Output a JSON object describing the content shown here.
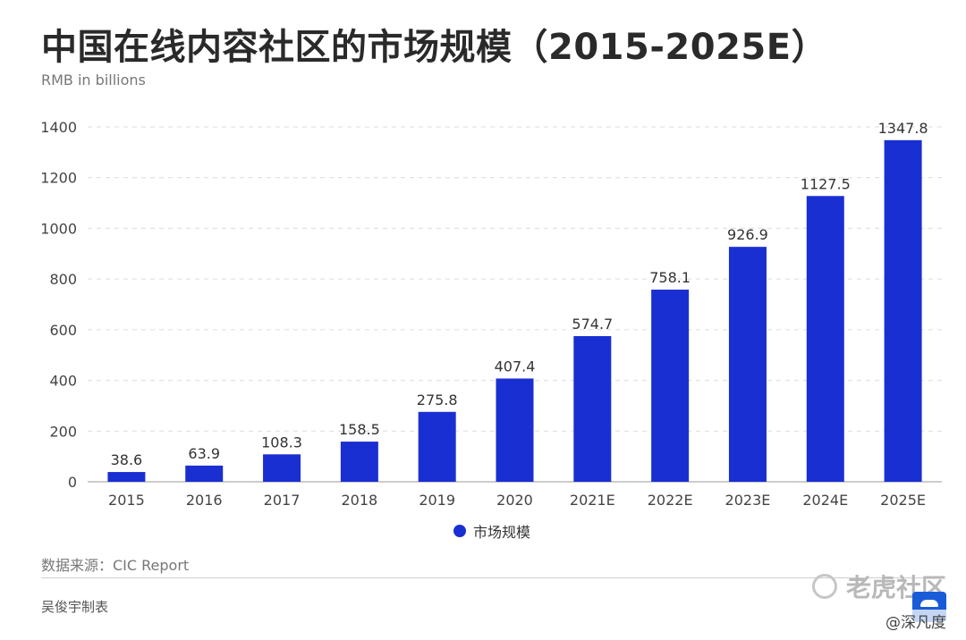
{
  "header": {
    "title": "中国在线内容社区的市场规模（2015-2025E）",
    "subtitle": "RMB in billions"
  },
  "chart_data": {
    "type": "bar",
    "categories": [
      "2015",
      "2016",
      "2017",
      "2018",
      "2019",
      "2020",
      "2021E",
      "2022E",
      "2023E",
      "2024E",
      "2025E"
    ],
    "series": [
      {
        "name": "市场规模",
        "values": [
          38.6,
          63.9,
          108.3,
          158.5,
          275.8,
          407.4,
          574.7,
          758.1,
          926.9,
          1127.5,
          1347.8
        ]
      }
    ],
    "value_labels": [
      "38.6",
      "63.9",
      "108.3",
      "158.5",
      "275.8",
      "407.4",
      "574.7",
      "758.1",
      "926.9",
      "1127.5",
      "1347.8"
    ],
    "ylim": [
      0,
      1400
    ],
    "yticks": [
      0,
      200,
      400,
      600,
      800,
      1000,
      1200,
      1400
    ],
    "grid": "horizontal dashed",
    "legend_position": "bottom-center",
    "bar_color": "#1a2fd1",
    "title": "中国在线内容社区的市场规模（2015-2025E）",
    "ylabel": "RMB in billions"
  },
  "legend": {
    "label": "市场规模",
    "color": "#1a2fd1"
  },
  "footer": {
    "source": "数据来源：CIC Report",
    "author": "吴俊宇制表"
  },
  "watermark": {
    "brand": "老虎社区",
    "user": "@深凡度",
    "badge_icon": "tiger-community-badge-icon",
    "brand_icon": "swirl-icon"
  }
}
